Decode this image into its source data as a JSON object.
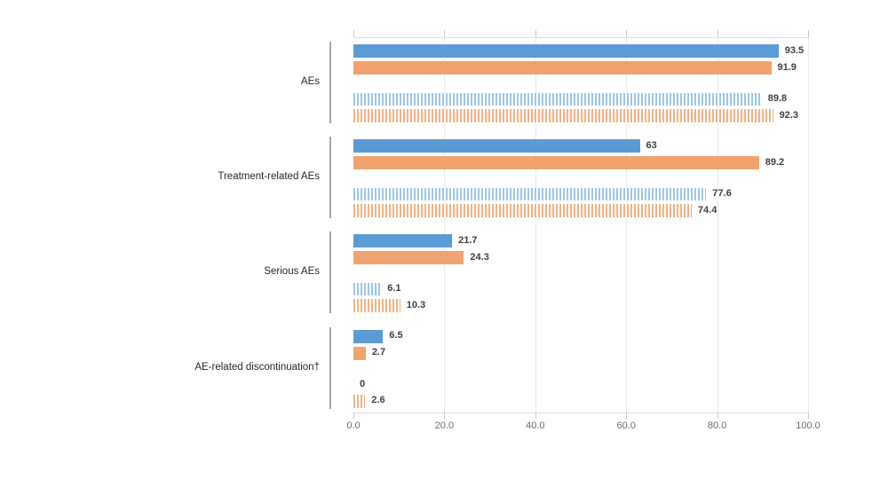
{
  "chart_data": {
    "type": "bar",
    "orientation": "horizontal",
    "title": "",
    "xlabel": "",
    "ylabel": "",
    "xlim": [
      0,
      100
    ],
    "x_ticks": [
      "0.0",
      "20.0",
      "40.0",
      "60.0",
      "80.0",
      "100.0"
    ],
    "x_tick_values": [
      0,
      20,
      40,
      60,
      80,
      100
    ],
    "grid": true,
    "legend_position": "none",
    "categories": [
      "AEs",
      "Treatment-related AEs",
      "Serious AEs",
      "AE-related discontinuation†"
    ],
    "series": [
      {
        "name": "solid-blue-bar",
        "pattern": "solid",
        "color": "#5b9bd5",
        "values": [
          93.5,
          63,
          21.7,
          6.5
        ]
      },
      {
        "name": "solid-orange-bar",
        "pattern": "solid",
        "color": "#f0a36e",
        "values": [
          91.9,
          89.2,
          24.3,
          2.7
        ]
      },
      {
        "name": "hatched-blue-bar",
        "pattern": "hatched",
        "color": "#9fc5e8",
        "values": [
          89.8,
          77.6,
          6.1,
          0
        ]
      },
      {
        "name": "hatched-orange-bar",
        "pattern": "hatched",
        "color": "#f4b183",
        "values": [
          92.3,
          74.4,
          10.3,
          2.6
        ]
      }
    ],
    "value_labels": [
      [
        "93.5",
        "91.9",
        "89.8",
        "92.3"
      ],
      [
        "63",
        "89.2",
        "77.6",
        "74.4"
      ],
      [
        "21.7",
        "24.3",
        "6.1",
        "10.3"
      ],
      [
        "6.5",
        "2.7",
        "0",
        "2.6"
      ]
    ]
  },
  "colors": {
    "solid_blue": "#5b9bd5",
    "solid_orange": "#f0a36e",
    "hatch_blue": "#9fc5e8",
    "hatch_orange": "#f4b183",
    "gridline": "#e9e9e9",
    "axis_segment": "#a6a6a6",
    "tick_label": "#6b6b6b",
    "value_label": "#3f3f3f",
    "category_label": "#262626"
  }
}
